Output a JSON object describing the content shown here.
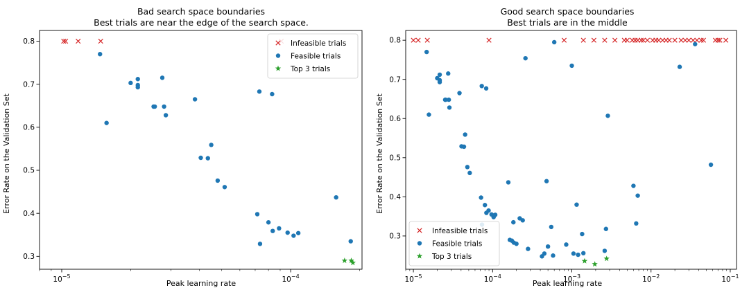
{
  "chart_data": [
    {
      "type": "scatter",
      "title": "Bad search space boundaries",
      "subtitle": "Best trials are near the edge of the search space.",
      "xlabel": "Peak learning rate",
      "ylabel": "Error Rate on the Validation Set",
      "xscale": "log",
      "xlim": [
        8e-06,
        0.000205
      ],
      "ylim": [
        0.27,
        0.825
      ],
      "xticks": [
        {
          "value": 1e-05,
          "base": "10",
          "exp": "−5"
        },
        {
          "value": 0.0001,
          "base": "10",
          "exp": "−4"
        }
      ],
      "yticks": [
        0.3,
        0.4,
        0.5,
        0.6,
        0.7,
        0.8
      ],
      "legend_position": "top-right",
      "series": [
        {
          "name": "Infeasible trials",
          "marker": "x",
          "color": "#d62728",
          "points": [
            [
              1.02e-05,
              0.8
            ],
            [
              1.04e-05,
              0.8
            ],
            [
              1.18e-05,
              0.8
            ],
            [
              1.48e-05,
              0.8
            ],
            [
              9.1e-05,
              0.8
            ]
          ]
        },
        {
          "name": "Feasible trials",
          "marker": "circle",
          "color": "#1f77b4",
          "points": [
            [
              1.47e-05,
              0.77
            ],
            [
              1.57e-05,
              0.61
            ],
            [
              2e-05,
              0.703
            ],
            [
              2.15e-05,
              0.712
            ],
            [
              2.15e-05,
              0.698
            ],
            [
              2.15e-05,
              0.693
            ],
            [
              2.52e-05,
              0.648
            ],
            [
              2.55e-05,
              0.648
            ],
            [
              2.75e-05,
              0.715
            ],
            [
              2.8e-05,
              0.648
            ],
            [
              2.85e-05,
              0.628
            ],
            [
              3.82e-05,
              0.665
            ],
            [
              4.05e-05,
              0.529
            ],
            [
              4.35e-05,
              0.528
            ],
            [
              4.5e-05,
              0.559
            ],
            [
              4.8e-05,
              0.476
            ],
            [
              5.15e-05,
              0.461
            ],
            [
              7.15e-05,
              0.398
            ],
            [
              7.3e-05,
              0.683
            ],
            [
              7.35e-05,
              0.329
            ],
            [
              8e-05,
              0.379
            ],
            [
              8.3e-05,
              0.677
            ],
            [
              8.35e-05,
              0.359
            ],
            [
              8.9e-05,
              0.365
            ],
            [
              9.7e-05,
              0.355
            ],
            [
              0.000103,
              0.348
            ],
            [
              0.000108,
              0.354
            ],
            [
              0.000158,
              0.437
            ],
            [
              0.000183,
              0.335
            ]
          ]
        },
        {
          "name": "Top 3 trials",
          "marker": "star",
          "color": "#2ca02c",
          "points": [
            [
              0.000172,
              0.29
            ],
            [
              0.000184,
              0.29
            ],
            [
              0.000187,
              0.285
            ]
          ]
        }
      ]
    },
    {
      "type": "scatter",
      "title": "Good search space boundaries",
      "subtitle": "Best trials are in the middle",
      "xlabel": "Peak learning rate",
      "ylabel": "Error Rate on the Validation Set",
      "xscale": "log",
      "xlim": [
        8e-06,
        0.12
      ],
      "ylim": [
        0.215,
        0.825
      ],
      "xticks": [
        {
          "value": 1e-05,
          "base": "10",
          "exp": "−5"
        },
        {
          "value": 0.0001,
          "base": "10",
          "exp": "−4"
        },
        {
          "value": 0.001,
          "base": "10",
          "exp": "−3"
        },
        {
          "value": 0.01,
          "base": "10",
          "exp": "−2"
        },
        {
          "value": 0.1,
          "base": "10",
          "exp": "−1"
        }
      ],
      "yticks": [
        0.2,
        0.3,
        0.4,
        0.5,
        0.6,
        0.7,
        0.8
      ],
      "legend_position": "bottom-left",
      "series": [
        {
          "name": "Infeasible trials",
          "marker": "x",
          "color": "#d62728",
          "points": [
            [
              1e-05,
              0.8
            ],
            [
              1.15e-05,
              0.8
            ],
            [
              1.5e-05,
              0.8
            ],
            [
              9e-05,
              0.8
            ],
            [
              0.0008,
              0.8
            ],
            [
              0.0014,
              0.8
            ],
            [
              0.0019,
              0.8
            ],
            [
              0.0026,
              0.8
            ],
            [
              0.0035,
              0.8
            ],
            [
              0.0046,
              0.8
            ],
            [
              0.005,
              0.8
            ],
            [
              0.0058,
              0.8
            ],
            [
              0.0063,
              0.8
            ],
            [
              0.0068,
              0.8
            ],
            [
              0.0075,
              0.8
            ],
            [
              0.008,
              0.8
            ],
            [
              0.009,
              0.8
            ],
            [
              0.0105,
              0.8
            ],
            [
              0.0115,
              0.8
            ],
            [
              0.0125,
              0.8
            ],
            [
              0.014,
              0.8
            ],
            [
              0.0155,
              0.8
            ],
            [
              0.017,
              0.8
            ],
            [
              0.02,
              0.8
            ],
            [
              0.024,
              0.8
            ],
            [
              0.027,
              0.8
            ],
            [
              0.03,
              0.8
            ],
            [
              0.034,
              0.8
            ],
            [
              0.038,
              0.8
            ],
            [
              0.043,
              0.8
            ],
            [
              0.046,
              0.8
            ],
            [
              0.065,
              0.8
            ],
            [
              0.07,
              0.8
            ],
            [
              0.074,
              0.8
            ],
            [
              0.088,
              0.8
            ]
          ]
        },
        {
          "name": "Feasible trials",
          "marker": "circle",
          "color": "#1f77b4",
          "points": [
            [
              1.47e-05,
              0.77
            ],
            [
              1.57e-05,
              0.61
            ],
            [
              2e-05,
              0.703
            ],
            [
              2.15e-05,
              0.712
            ],
            [
              2.15e-05,
              0.698
            ],
            [
              2.15e-05,
              0.693
            ],
            [
              2.52e-05,
              0.648
            ],
            [
              2.55e-05,
              0.648
            ],
            [
              2.75e-05,
              0.715
            ],
            [
              2.8e-05,
              0.648
            ],
            [
              2.85e-05,
              0.628
            ],
            [
              3.82e-05,
              0.665
            ],
            [
              4.05e-05,
              0.529
            ],
            [
              4.35e-05,
              0.528
            ],
            [
              4.5e-05,
              0.559
            ],
            [
              4.8e-05,
              0.476
            ],
            [
              5.15e-05,
              0.461
            ],
            [
              7.15e-05,
              0.398
            ],
            [
              7.3e-05,
              0.683
            ],
            [
              7.35e-05,
              0.329
            ],
            [
              8e-05,
              0.379
            ],
            [
              8.3e-05,
              0.677
            ],
            [
              8.35e-05,
              0.359
            ],
            [
              8.9e-05,
              0.365
            ],
            [
              9.7e-05,
              0.355
            ],
            [
              0.000103,
              0.348
            ],
            [
              0.000108,
              0.354
            ],
            [
              0.000158,
              0.437
            ],
            [
              0.000183,
              0.335
            ],
            [
              0.000165,
              0.29
            ],
            [
              0.000175,
              0.288
            ],
            [
              0.000185,
              0.283
            ],
            [
              0.0002,
              0.28
            ],
            [
              0.00022,
              0.345
            ],
            [
              0.00024,
              0.34
            ],
            [
              0.00026,
              0.754
            ],
            [
              0.00028,
              0.267
            ],
            [
              0.00042,
              0.248
            ],
            [
              0.00045,
              0.255
            ],
            [
              0.00048,
              0.44
            ],
            [
              0.0005,
              0.273
            ],
            [
              0.00055,
              0.323
            ],
            [
              0.00058,
              0.25
            ],
            [
              0.0006,
              0.795
            ],
            [
              0.00085,
              0.278
            ],
            [
              0.001,
              0.735
            ],
            [
              0.00105,
              0.255
            ],
            [
              0.00115,
              0.38
            ],
            [
              0.0012,
              0.252
            ],
            [
              0.00135,
              0.305
            ],
            [
              0.0014,
              0.256
            ],
            [
              0.0026,
              0.262
            ],
            [
              0.0027,
              0.318
            ],
            [
              0.00285,
              0.607
            ],
            [
              0.006,
              0.428
            ],
            [
              0.0065,
              0.332
            ],
            [
              0.0068,
              0.403
            ],
            [
              0.023,
              0.732
            ],
            [
              0.036,
              0.79
            ],
            [
              0.057,
              0.482
            ]
          ]
        },
        {
          "name": "Top 3 trials",
          "marker": "star",
          "color": "#2ca02c",
          "points": [
            [
              0.00145,
              0.236
            ],
            [
              0.00195,
              0.228
            ],
            [
              0.00275,
              0.242
            ]
          ]
        }
      ]
    }
  ]
}
